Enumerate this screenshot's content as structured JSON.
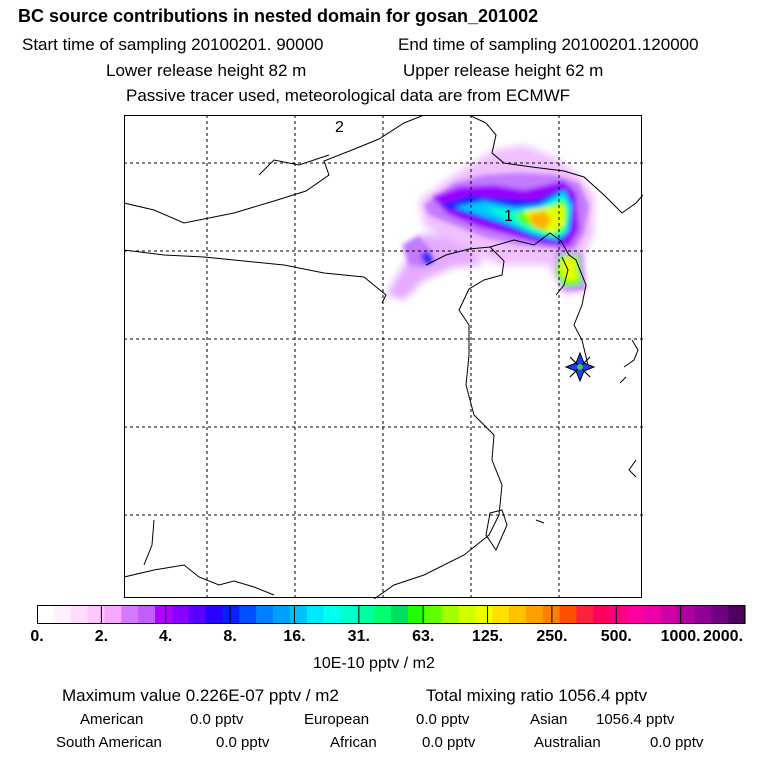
{
  "header": {
    "title": "BC  source contributions in nested domain for gosan_201002",
    "start_time": "Start time of sampling 20100201. 90000",
    "end_time": "End time of sampling 20100201.120000",
    "lower_release": "Lower release height   82 m",
    "upper_release": "Upper release height   62 m",
    "tracer_note": "Passive tracer used, meteorological data are from ECMWF"
  },
  "map": {
    "region_labels": {
      "label_1": "1",
      "label_2": "2"
    },
    "receptor_marker": "receptor-star-icon",
    "plume_colors": [
      "#c27aff",
      "#9b00ff",
      "#1a1aff",
      "#00c8ff",
      "#00ffcc",
      "#5aff00",
      "#e6ff00",
      "#ffb000"
    ]
  },
  "colorbar": {
    "tick_labels": [
      "0.",
      "2.",
      "4.",
      "8.",
      "16.",
      "31.",
      "63.",
      "125.",
      "250.",
      "500.",
      "1000.",
      "2000."
    ],
    "unit_label": "10E-10 pptv / m2",
    "colors": [
      "#ffffff",
      "#fff0ff",
      "#ffdbff",
      "#ffc6ff",
      "#f6a8ff",
      "#d478ff",
      "#c35cff",
      "#b000ff",
      "#8a00ff",
      "#5a00ff",
      "#2a00ff",
      "#0a20ff",
      "#0050ff",
      "#0080ff",
      "#00a0ff",
      "#00c0ff",
      "#00e8ff",
      "#00ffee",
      "#00ffcc",
      "#00ffa0",
      "#00ff70",
      "#00e060",
      "#20ff00",
      "#60ff00",
      "#a0ff00",
      "#d0ff00",
      "#f0ff00",
      "#ffe000",
      "#ffc000",
      "#ffa000",
      "#ff8000",
      "#ff5000",
      "#ff2040",
      "#ff0060",
      "#ff0080",
      "#ff00a0",
      "#ee00a8",
      "#d000a8",
      "#b000a0",
      "#900098",
      "#700080",
      "#500060"
    ]
  },
  "summary": {
    "max_value": "Maximum value  0.226E-07 pptv / m2",
    "total_mixing": "Total mixing ratio     1056.4 pptv",
    "american": "American",
    "american_val": "0.0 pptv",
    "european": "European",
    "european_val": "0.0 pptv",
    "asian": "Asian",
    "asian_val": "1056.4 pptv",
    "south_american": "South American",
    "south_american_val": "0.0 pptv",
    "african": "African",
    "african_val": "0.0 pptv",
    "australian": "Australian",
    "australian_val": "0.0 pptv"
  }
}
